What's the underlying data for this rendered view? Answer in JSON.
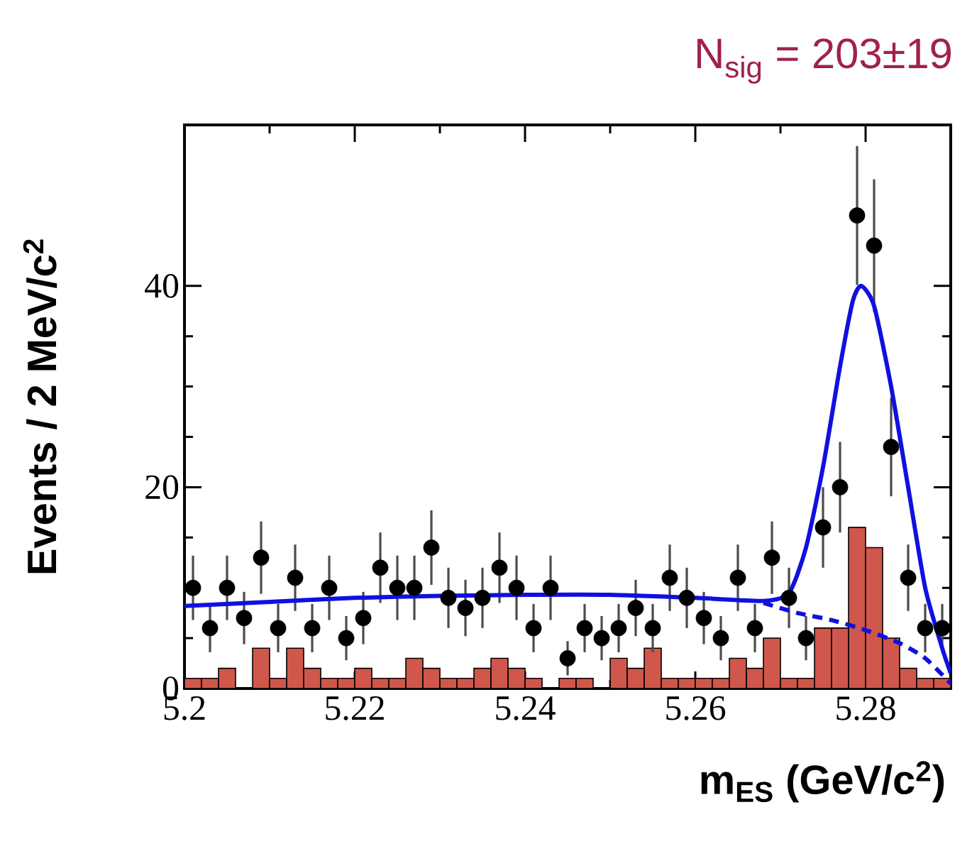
{
  "chart_data": {
    "type": "scatter",
    "title": "N$_{sig}$ = 203±19",
    "xlabel": "m$_{ES}$ (GeV/c$^{2}$)",
    "ylabel": "Events / 2 MeV/c$^{2}$",
    "xlim": [
      5.2,
      5.29
    ],
    "ylim": [
      0,
      56
    ],
    "xticks": [
      5.2,
      5.22,
      5.24,
      5.26,
      5.28
    ],
    "yticks": [
      0,
      20,
      40
    ],
    "grid": false,
    "series": [
      {
        "type": "histogram",
        "color": "#d0574b",
        "bins": [
          5.2,
          5.202,
          5.204,
          5.206,
          5.208,
          5.21,
          5.212,
          5.214,
          5.216,
          5.218,
          5.22,
          5.222,
          5.224,
          5.226,
          5.228,
          5.23,
          5.232,
          5.234,
          5.236,
          5.238,
          5.24,
          5.242,
          5.244,
          5.246,
          5.248,
          5.25,
          5.252,
          5.254,
          5.256,
          5.258,
          5.26,
          5.262,
          5.264,
          5.266,
          5.268,
          5.27,
          5.272,
          5.274,
          5.276,
          5.278,
          5.28,
          5.282,
          5.284,
          5.286,
          5.288,
          5.29
        ],
        "values": [
          1,
          1,
          2,
          0,
          4,
          1,
          4,
          2,
          1,
          1,
          2,
          1,
          1,
          3,
          2,
          1,
          1,
          2,
          3,
          2,
          1,
          0,
          1,
          1,
          0,
          3,
          2,
          4,
          1,
          1,
          1,
          1,
          3,
          2,
          5,
          1,
          1,
          6,
          6,
          16,
          14,
          5,
          2,
          1,
          1
        ]
      },
      {
        "color": "#000000",
        "x": [
          5.201,
          5.203,
          5.205,
          5.207,
          5.209,
          5.211,
          5.213,
          5.215,
          5.217,
          5.219,
          5.221,
          5.223,
          5.225,
          5.227,
          5.229,
          5.231,
          5.233,
          5.235,
          5.237,
          5.239,
          5.241,
          5.243,
          5.245,
          5.247,
          5.249,
          5.251,
          5.253,
          5.255,
          5.257,
          5.259,
          5.261,
          5.263,
          5.265,
          5.267,
          5.269,
          5.271,
          5.273,
          5.275,
          5.277,
          5.279,
          5.281,
          5.283,
          5.285,
          5.287,
          5.289
        ],
        "values": [
          10,
          6,
          10,
          7,
          13,
          6,
          11,
          6,
          10,
          5,
          7,
          12,
          10,
          10,
          14,
          9,
          8,
          9,
          12,
          10,
          6,
          10,
          3,
          6,
          5,
          6,
          8,
          6,
          11,
          9,
          7,
          5,
          11,
          6,
          13,
          9,
          5,
          16,
          20,
          47,
          44,
          24,
          11,
          6,
          6
        ],
        "errors": [
          3.2,
          2.4,
          3.2,
          2.6,
          3.6,
          2.4,
          3.3,
          2.4,
          3.2,
          2.2,
          2.6,
          3.5,
          3.2,
          3.2,
          3.7,
          3,
          2.8,
          3,
          3.5,
          3.2,
          2.4,
          3.2,
          1.7,
          2.4,
          2.2,
          2.4,
          2.8,
          2.4,
          3.3,
          3,
          2.6,
          2.2,
          3.3,
          2.4,
          3.6,
          3,
          2.2,
          4,
          4.5,
          6.9,
          6.6,
          4.9,
          3.3,
          2.4,
          2.4
        ]
      },
      {
        "type": "line",
        "color": "#1010e0",
        "line_style": "solid",
        "marker": "none",
        "x": [
          5.2,
          5.21,
          5.22,
          5.23,
          5.24,
          5.25,
          5.26,
          5.268,
          5.271,
          5.273,
          5.275,
          5.277,
          5.2785,
          5.2795,
          5.281,
          5.283,
          5.285,
          5.287,
          5.289,
          5.29
        ],
        "values": [
          8.2,
          8.6,
          9.0,
          9.2,
          9.3,
          9.3,
          9.0,
          8.7,
          9.5,
          14,
          22,
          32,
          38.5,
          40,
          38,
          30,
          20,
          10,
          4,
          1.5
        ]
      },
      {
        "type": "line",
        "color": "#1010e0",
        "line_style": "dashed",
        "marker": "none",
        "x": [
          5.268,
          5.272,
          5.276,
          5.28,
          5.284,
          5.287,
          5.29
        ],
        "values": [
          8.5,
          7.5,
          6.8,
          5.8,
          4.5,
          3,
          0.5
        ]
      }
    ]
  }
}
